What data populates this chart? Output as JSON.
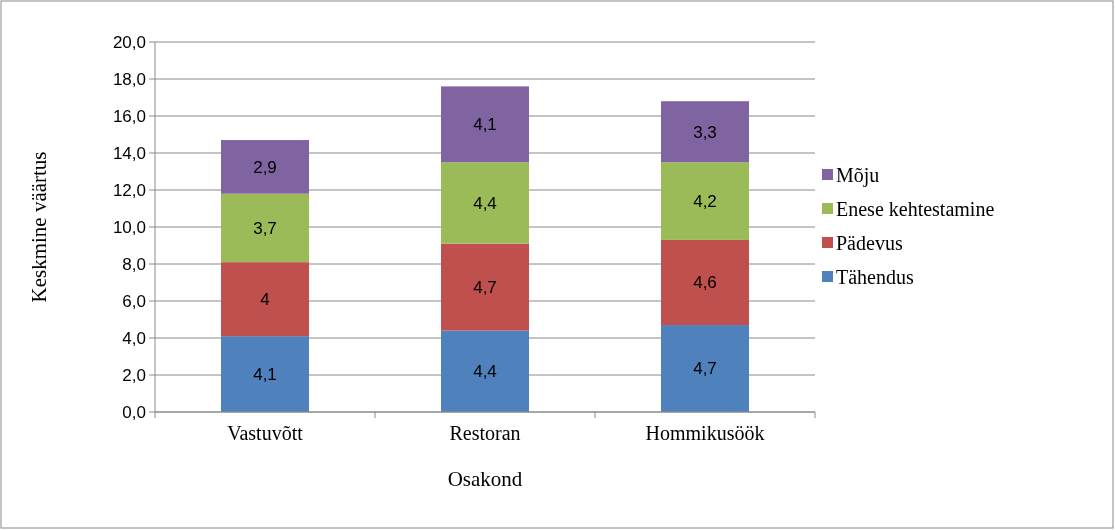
{
  "chart_data": {
    "type": "bar",
    "stacked": true,
    "xlabel": "Osakond",
    "ylabel": "Keskmine väärtus",
    "categories": [
      "Vastuvõtt",
      "Restoran",
      "Hommikusöök"
    ],
    "series": [
      {
        "name": "Tähendus",
        "color": "#4f81bd",
        "values": [
          4.1,
          4.4,
          4.7
        ],
        "value_labels": [
          "4,1",
          "4,4",
          "4,7"
        ]
      },
      {
        "name": "Pädevus",
        "color": "#c0504d",
        "values": [
          4,
          4.7,
          4.6
        ],
        "value_labels": [
          "4",
          "4,7",
          "4,6"
        ]
      },
      {
        "name": "Enese kehtestamine",
        "color": "#9bbb59",
        "values": [
          3.7,
          4.4,
          4.2
        ],
        "value_labels": [
          "3,7",
          "4,4",
          "4,2"
        ]
      },
      {
        "name": "Mõju",
        "color": "#8064a2",
        "values": [
          2.9,
          4.1,
          3.3
        ],
        "value_labels": [
          "2,9",
          "4,1",
          "3,3"
        ]
      }
    ],
    "ylim": [
      0,
      20
    ],
    "yticks": [
      {
        "value": 0,
        "label": "0,0"
      },
      {
        "value": 2,
        "label": "2,0"
      },
      {
        "value": 4,
        "label": "4,0"
      },
      {
        "value": 6,
        "label": "6,0"
      },
      {
        "value": 8,
        "label": "8,0"
      },
      {
        "value": 10,
        "label": "10,0"
      },
      {
        "value": 12,
        "label": "12,0"
      },
      {
        "value": 14,
        "label": "14,0"
      },
      {
        "value": 16,
        "label": "16,0"
      },
      {
        "value": 18,
        "label": "18,0"
      },
      {
        "value": 20,
        "label": "20,0"
      }
    ],
    "grid": "y",
    "legend": "right"
  }
}
